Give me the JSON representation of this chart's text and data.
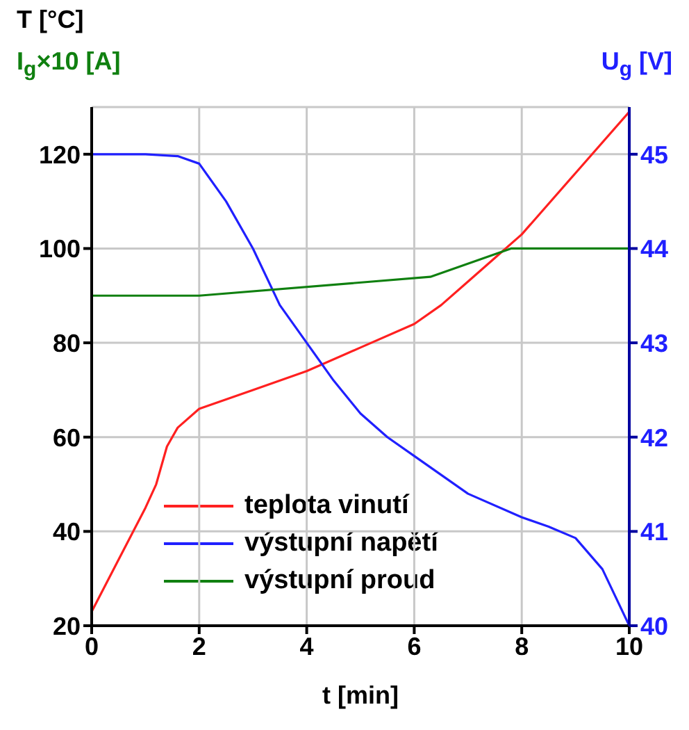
{
  "chart_data": {
    "type": "line",
    "xlabel": "t [min]",
    "ylabel": "T [°C]",
    "y2label": "U$_{g}$ [V]",
    "annotations": [
      "I$_{g}$×10 [A]"
    ],
    "xlim": [
      0,
      10
    ],
    "xticks": [
      0,
      2,
      4,
      6,
      8,
      10
    ],
    "ylim": [
      20,
      130
    ],
    "yticks": [
      20,
      40,
      60,
      80,
      100,
      120
    ],
    "y2lim": [
      40,
      45.5
    ],
    "y2ticks": [
      40,
      41,
      42,
      43,
      44,
      45
    ],
    "grid": true,
    "legend": "bottom left",
    "marker": "none",
    "line_style": "solid",
    "series": [
      {
        "name": "teplota vinutí",
        "color": "#ff2020",
        "x": [
          0,
          0.5,
          1,
          1.2,
          1.4,
          1.6,
          2,
          2.5,
          3,
          4,
          5,
          6,
          6.5,
          7,
          7.5,
          8,
          9,
          10
        ],
        "values": [
          23,
          34,
          45,
          50,
          58,
          62,
          66,
          68,
          70,
          74,
          79,
          84,
          88,
          93,
          98,
          103,
          116,
          129
        ]
      },
      {
        "name": "výstupní napětí",
        "color": "#2020ff",
        "axis": "y2",
        "x": [
          0,
          1,
          1.6,
          2,
          2.5,
          3,
          3.5,
          4,
          4.5,
          5,
          5.5,
          6,
          7,
          8,
          8.5,
          9,
          9.5,
          10
        ],
        "values": [
          45,
          45,
          44.98,
          44.9,
          44.5,
          44,
          43.4,
          43,
          42.6,
          42.25,
          42,
          41.8,
          41.4,
          41.15,
          41.05,
          40.93,
          40.6,
          40
        ]
      },
      {
        "name": "výstupní proud",
        "color": "#108010",
        "x": [
          0,
          2,
          6.3,
          7.8,
          10
        ],
        "values": [
          90,
          90,
          94,
          100,
          100
        ]
      }
    ]
  }
}
